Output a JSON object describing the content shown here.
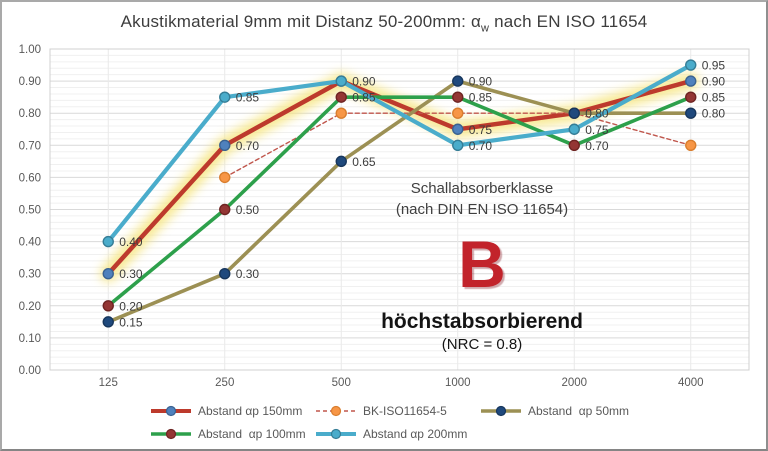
{
  "title": {
    "prefix": "Akustikmaterial 9mm mit Distanz 50-200mm: α",
    "subscript": "w",
    "suffix": " nach EN ISO 11654"
  },
  "annotation": {
    "class_label_line1": "Schallabsorberklasse",
    "class_label_line2": "(nach DIN EN ISO 11654)",
    "class_letter": "B",
    "class_letter_color": "#c2232b",
    "class_desc": "höchstabsorbierend",
    "class_nrc": "(NRC = 0.8)"
  },
  "chart_data": {
    "type": "line",
    "title": "Akustikmaterial 9mm mit Distanz 50-200mm: αw nach EN ISO 11654",
    "categories": [
      "125",
      "250",
      "500",
      "1000",
      "2000",
      "4000"
    ],
    "xlabel": "",
    "ylabel": "",
    "ylim": [
      0,
      1.0
    ],
    "y_major_step": 0.1,
    "y_minor_step": 0.02,
    "grid": true,
    "legend_position": "bottom",
    "y_tick_labels": [
      "0.00",
      "0.10",
      "0.20",
      "0.30",
      "0.40",
      "0.50",
      "0.60",
      "0.70",
      "0.80",
      "0.90",
      "1.00"
    ],
    "highlight_color": "#f6e57e",
    "series": [
      {
        "name": "Abstand αp 150mm",
        "values": [
          0.3,
          0.7,
          0.9,
          0.75,
          0.8,
          0.9
        ],
        "labels": [
          "0.30",
          "0.70",
          null,
          "0.75",
          null,
          "0.90"
        ],
        "line_color": "#bd3a2c",
        "marker_color": "#4f81bd",
        "marker_stroke": "#3a6291",
        "width": 4.5,
        "dash": null,
        "highlight": true
      },
      {
        "name": "BK-ISO11654-5",
        "values": [
          null,
          0.6,
          0.8,
          0.8,
          0.8,
          0.7
        ],
        "labels": [
          null,
          null,
          null,
          null,
          null,
          null
        ],
        "line_color": "#c0564c",
        "marker_color": "#f79646",
        "marker_stroke": "#d97e2e",
        "width": 1.4,
        "dash": "4 3",
        "highlight": false
      },
      {
        "name": "Abstand  αp 50mm",
        "values": [
          0.15,
          0.3,
          0.65,
          0.9,
          0.8,
          0.8
        ],
        "labels": [
          "0.15",
          "0.30",
          "0.65",
          "0.90",
          "0.80",
          "0.80"
        ],
        "line_color": "#9c9054",
        "marker_color": "#1f497d",
        "marker_stroke": "#17365c",
        "width": 3.6,
        "dash": null,
        "highlight": false
      },
      {
        "name": "Abstand  αp 100mm",
        "values": [
          0.2,
          0.5,
          0.85,
          0.85,
          0.7,
          0.85
        ],
        "labels": [
          "0.20",
          "0.50",
          "0.85",
          "0.85",
          "0.70",
          "0.85"
        ],
        "line_color": "#2da04b",
        "marker_color": "#943634",
        "marker_stroke": "#6e2422",
        "width": 3.6,
        "dash": null,
        "highlight": false
      },
      {
        "name": "Abstand αp 200mm",
        "values": [
          0.4,
          0.85,
          0.9,
          0.7,
          0.75,
          0.95
        ],
        "labels": [
          "0.40",
          "0.85",
          "0.90",
          "0.70",
          "0.75",
          "0.95"
        ],
        "line_color": "#4aaccb",
        "marker_color": "#4aaccb",
        "marker_stroke": "#357d96",
        "width": 4.2,
        "dash": null,
        "highlight": false
      }
    ]
  }
}
